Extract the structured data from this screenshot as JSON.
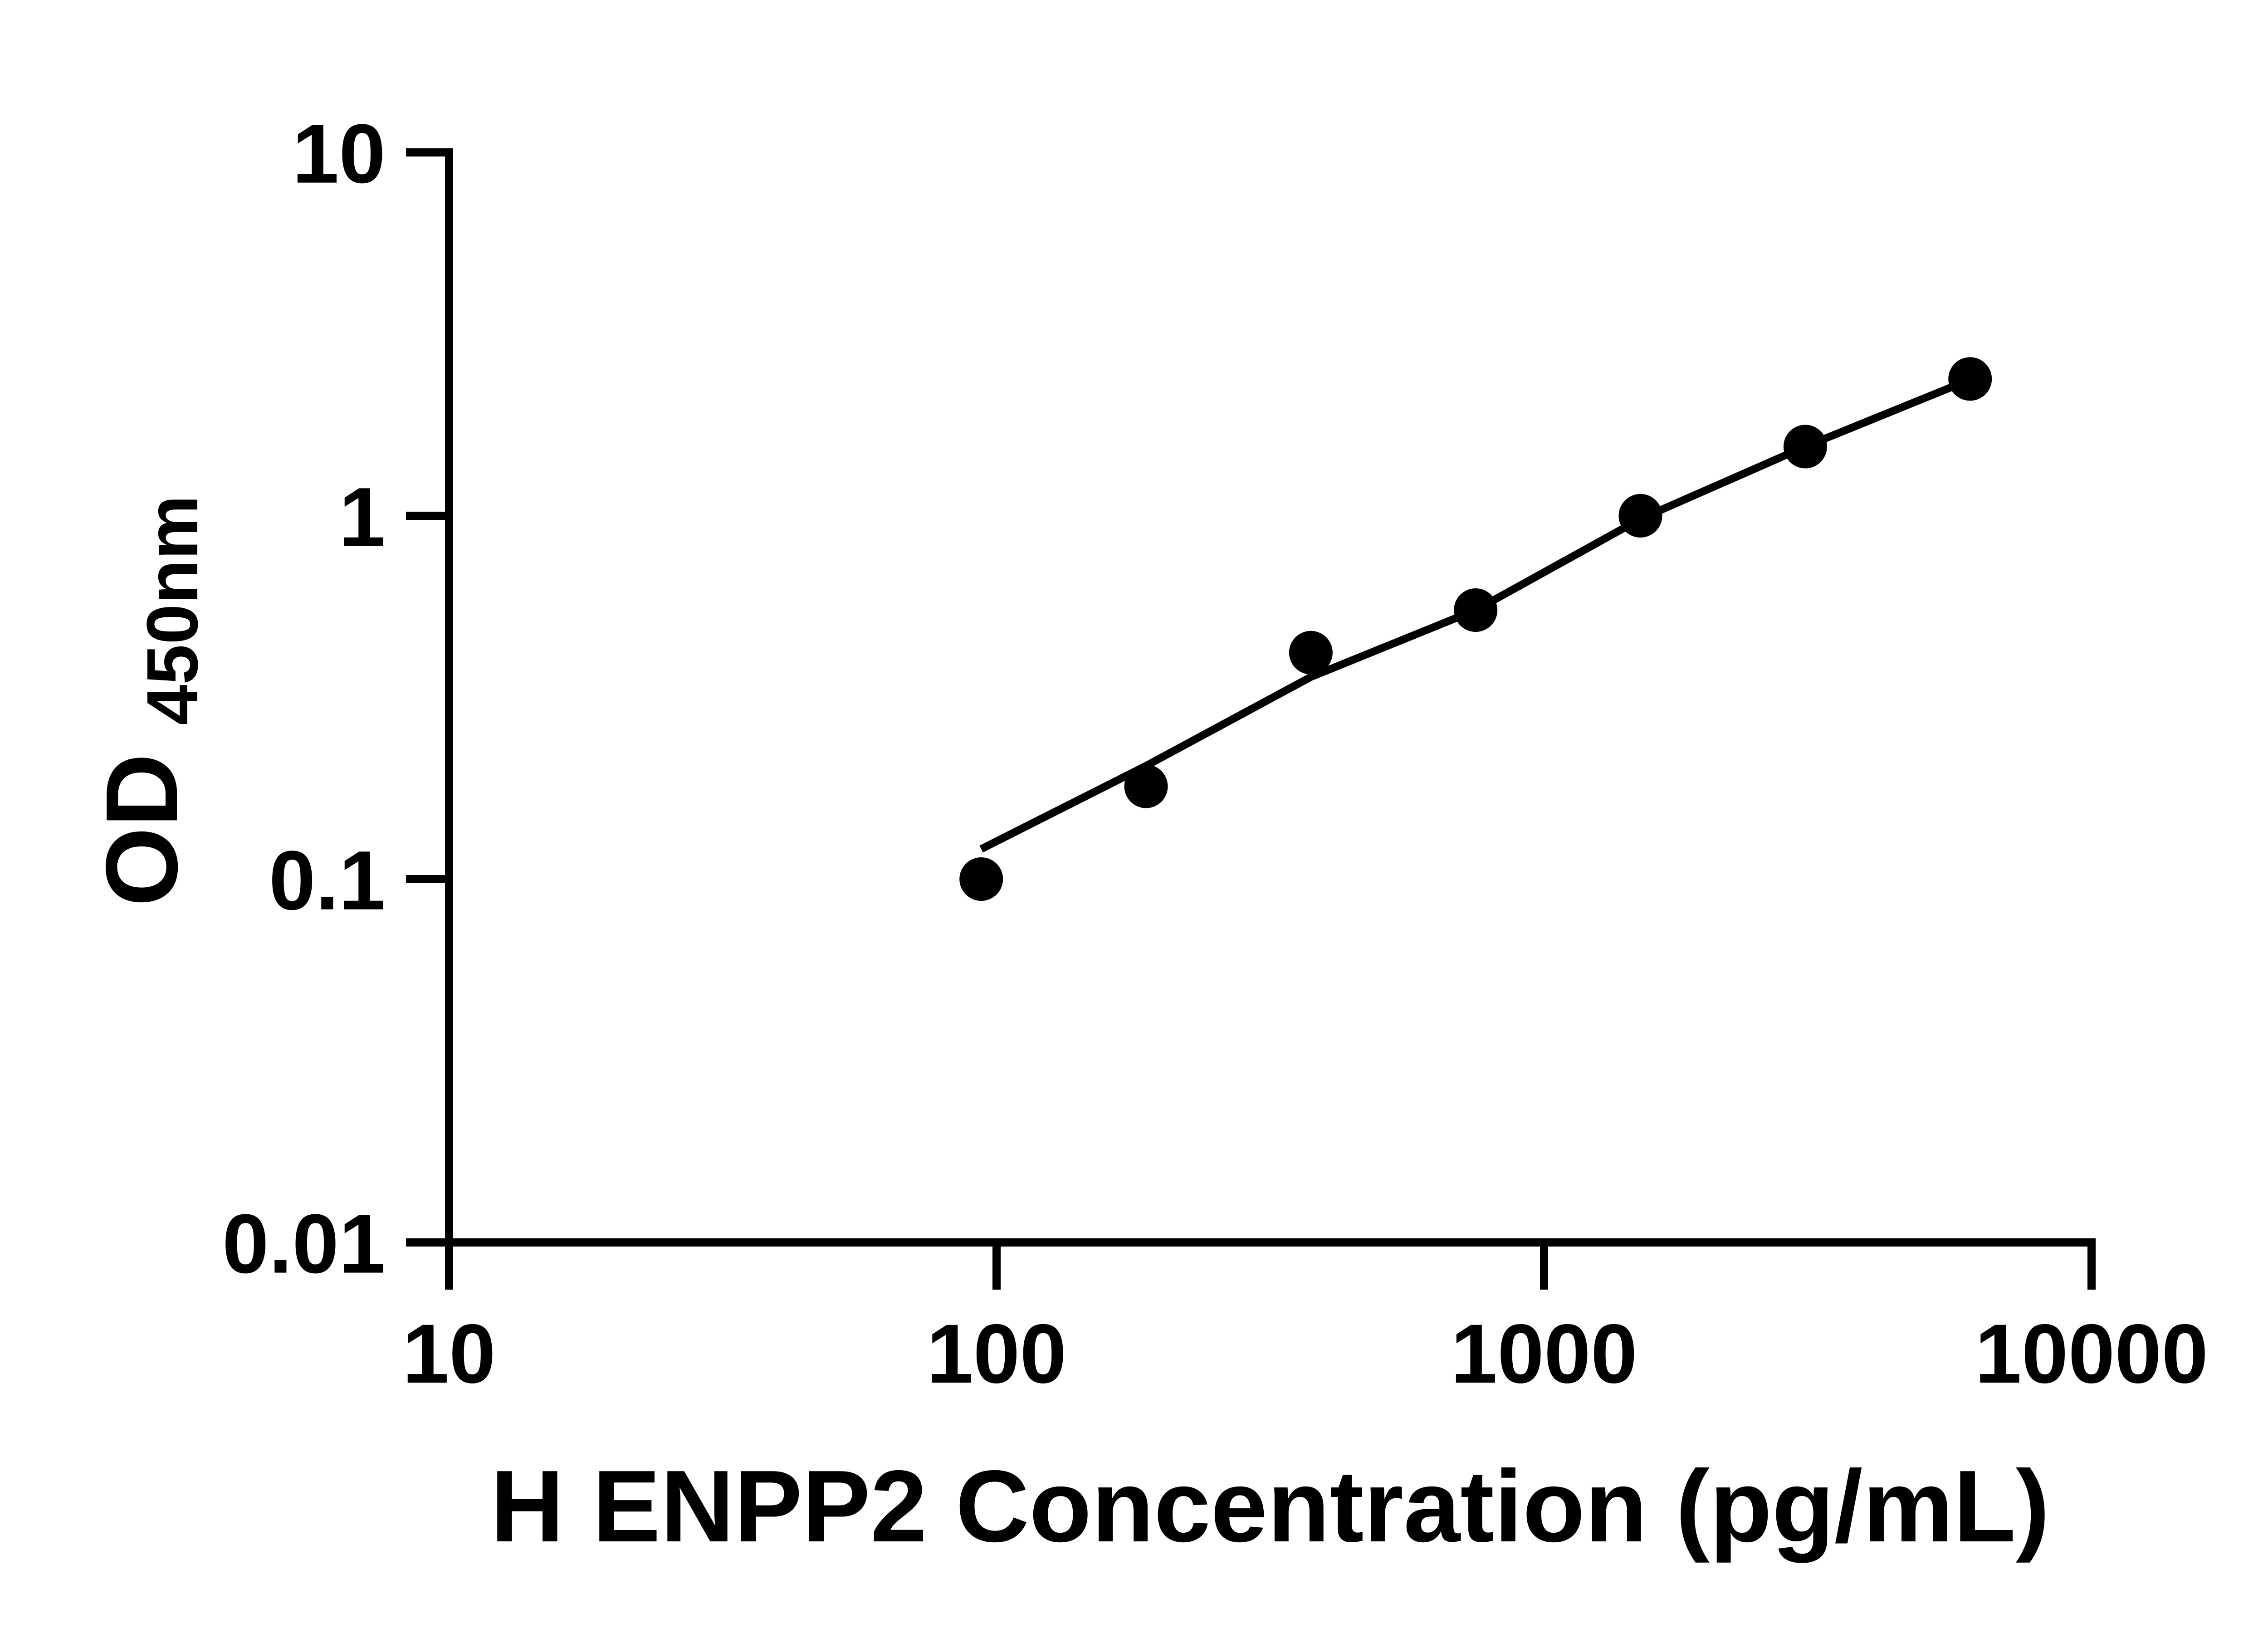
{
  "figure": {
    "background_color": "#ffffff",
    "ink_color": "#000000"
  },
  "chart_data": {
    "type": "scatter",
    "title": "",
    "xlabel": "H ENPP2 Concentration (pg/mL)",
    "ylabel": "OD450nm",
    "x_scale": "log",
    "y_scale": "log",
    "xlim": [
      10,
      10000
    ],
    "ylim": [
      0.01,
      10
    ],
    "grid": false,
    "legend_position": "none",
    "marker": {
      "shape": "circle",
      "color": "#000000"
    },
    "series": [
      {
        "name": "standard-points",
        "type": "scatter",
        "x": [
          93.75,
          187.5,
          375,
          750,
          1500,
          3000,
          6000
        ],
        "y": [
          0.1,
          0.18,
          0.42,
          0.55,
          1.0,
          1.55,
          2.38
        ]
      },
      {
        "name": "fitted-curve",
        "type": "line",
        "x": [
          93.75,
          187.5,
          375,
          750,
          1500,
          3000,
          6000
        ],
        "y": [
          0.121,
          0.205,
          0.36,
          0.55,
          0.98,
          1.55,
          2.37
        ]
      }
    ]
  },
  "x_axis": {
    "title": "H ENPP2 Concentration (pg/mL)",
    "scale": "log",
    "min": 10,
    "max": 10000,
    "ticks": [
      {
        "value": 10,
        "label": "10"
      },
      {
        "value": 100,
        "label": "100"
      },
      {
        "value": 1000,
        "label": "1000"
      },
      {
        "value": 10000,
        "label": "10000"
      }
    ]
  },
  "y_axis": {
    "title_main": "OD",
    "title_sub": "450nm",
    "scale": "log",
    "min": 0.01,
    "max": 10,
    "ticks": [
      {
        "value": 10,
        "label": "10"
      },
      {
        "value": 1,
        "label": "1"
      },
      {
        "value": 0.1,
        "label": "0.1"
      },
      {
        "value": 0.01,
        "label": "0.01"
      }
    ]
  }
}
